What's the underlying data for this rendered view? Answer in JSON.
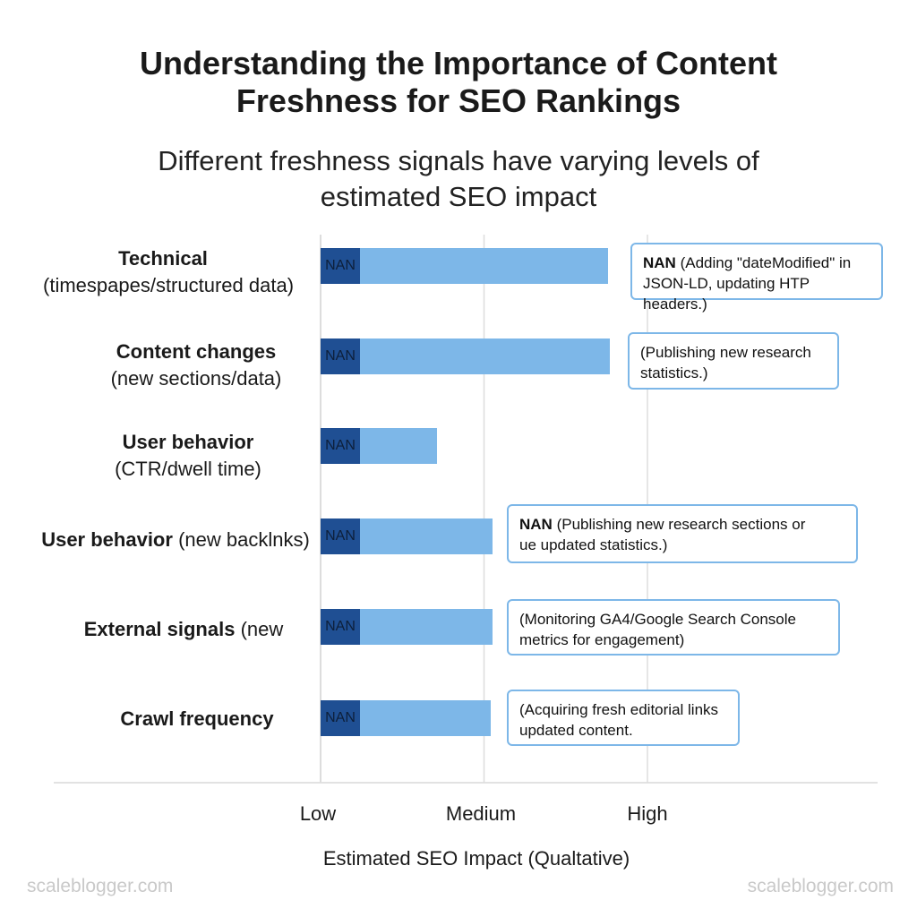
{
  "chart_data": {
    "type": "bar",
    "orientation": "horizontal",
    "title_line1": "Understanding the Importance of Content",
    "title_line2": "Freshness for SEO Rankings",
    "subtitle_line1": "Different freshness signals have varying levels of",
    "subtitle_line2": "estimated SEO impact",
    "xlabel": "Estimated SEO Impact (Qualtative)",
    "x_ticks": [
      {
        "label": "Low",
        "value": 0
      },
      {
        "label": "Medium",
        "value": 1
      },
      {
        "label": "High",
        "value": 2
      }
    ],
    "xlim": [
      0,
      2
    ],
    "bars": [
      {
        "main": "Technical",
        "sub": "(timespapes/structured data)",
        "inline": false,
        "value": 1.76,
        "bar_label": "NAN",
        "note_bold": "NAN",
        "note_line1": "(Adding \"dateModified\" in",
        "note_line2": "JSON-LD, updating HTP headers.)"
      },
      {
        "main": "Content changes",
        "sub": "(new sections/data)",
        "inline": false,
        "value": 1.77,
        "bar_label": "NAN",
        "note_bold": "",
        "note_line1": "(Publishing new research",
        "note_line2": "statistics.)"
      },
      {
        "main": "User behavior",
        "sub": "(CTR/dwell time)",
        "inline": false,
        "value": 0.71,
        "bar_label": "NAN",
        "note_bold": "",
        "note_line1": "",
        "note_line2": ""
      },
      {
        "main": "User behavior",
        "sub": "(new backlnks)",
        "inline": true,
        "value": 1.05,
        "bar_label": "NAN",
        "note_bold": "NAN",
        "note_line1": "(Publishing new research sections or",
        "note_line2": "ue updated statistics.)"
      },
      {
        "main": "External signals",
        "sub": "(new",
        "inline": true,
        "value": 1.05,
        "bar_label": "NAN",
        "note_bold": "",
        "note_line1": "(Monitoring GA4/Google Search Console",
        "note_line2": "metrics for engagement)"
      },
      {
        "main": "Crawl frequency",
        "sub": "",
        "inline": false,
        "value": 1.04,
        "bar_label": "NAN",
        "note_bold": "",
        "note_line1": "(Acquiring fresh editorial links",
        "note_line2": "updated content."
      }
    ],
    "colors": {
      "bar": "#7db7e8",
      "bar_dark": "#1f4f93",
      "note_border": "#7db7e8",
      "grid": "#dddddd"
    }
  },
  "watermark": "scaleblogger.com"
}
